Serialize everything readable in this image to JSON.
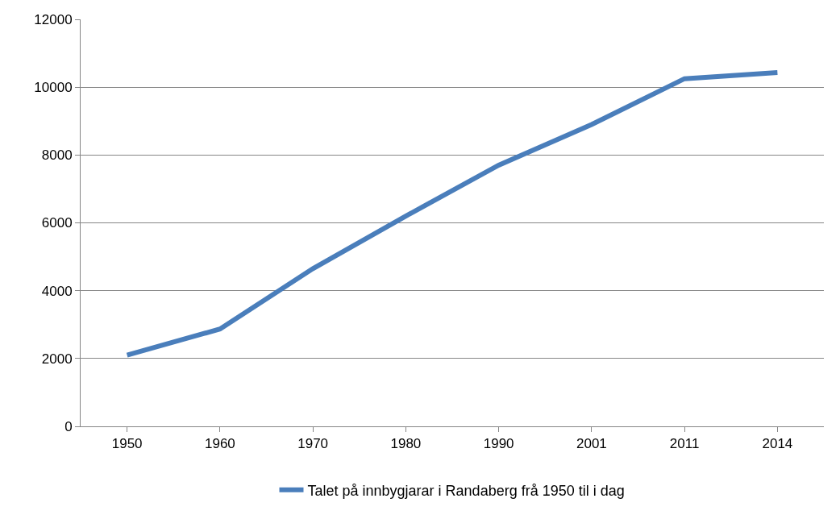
{
  "chart_data": {
    "type": "line",
    "categories": [
      "1950",
      "1960",
      "1970",
      "1980",
      "1990",
      "2001",
      "2011",
      "2014"
    ],
    "series": [
      {
        "name": "Talet på innbygjarar i Randaberg frå 1950 til i dag",
        "color": "#4a7ebb",
        "values": [
          2100,
          2870,
          4650,
          6200,
          7700,
          8900,
          10250,
          10430
        ]
      }
    ],
    "ylim": [
      0,
      12000
    ],
    "yticks": [
      0,
      2000,
      4000,
      6000,
      8000,
      10000,
      12000
    ],
    "grid": "y",
    "legend": "bottom",
    "marker": "none",
    "line_style": "solid"
  }
}
